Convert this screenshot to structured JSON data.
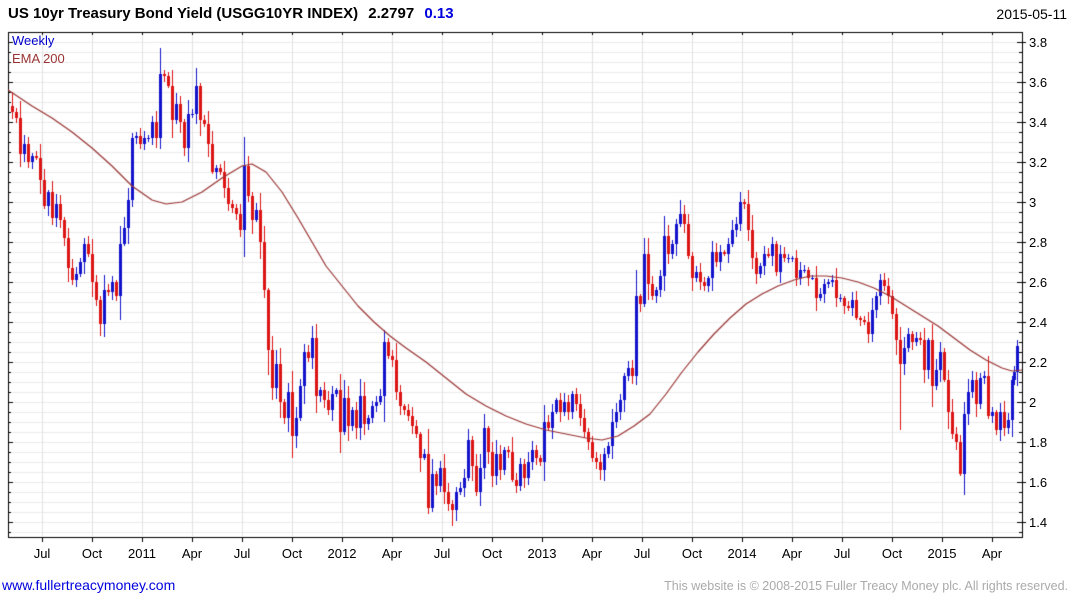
{
  "header": {
    "title": "US 10yr Treasury Bond Yield (USGG10YR INDEX)",
    "last_price": "2.2797",
    "change": "0.13",
    "date": "2015-05-11"
  },
  "legend": {
    "timeframe": "Weekly",
    "overlay": "EMA 200"
  },
  "footer": {
    "site_url": "www.fullertreacymoney.com",
    "copyright": "This website is © 2008-2015 Fuller Treacy Money plc. All rights reserved."
  },
  "colors": {
    "candle_up": "#1313cc",
    "candle_down": "#dc1414",
    "ema_line": "#993333",
    "legend_weekly": "#0000cc",
    "change_text": "#0000dd",
    "link": "#0000dd",
    "copyright_text": "#aaaaaa",
    "grid_h": "#ececec",
    "grid_v": "#e2e2e2",
    "axis": "#000000"
  },
  "chart_data": {
    "type": "candlestick",
    "title": "US 10yr Treasury Bond Yield (USGG10YR INDEX)",
    "subtitle_last": 2.2797,
    "change": 0.13,
    "as_of_date": "2015-05-11",
    "timeframe": "Weekly",
    "overlay": "EMA 200",
    "grid": true,
    "legend_position": "top-left-inside",
    "ylim": [
      1.325,
      3.85
    ],
    "y_major_ticks": [
      "3.8",
      "3.6",
      "3.4",
      "3.2",
      "3",
      "2.8",
      "2.6",
      "2.4",
      "2.2",
      "2",
      "1.8",
      "1.6",
      "1.4"
    ],
    "y_minor_step": 0.05,
    "x_range_decimal_years": [
      2010.33,
      2015.4
    ],
    "x_ticks": [
      {
        "t": 2010.5,
        "label": "Jul"
      },
      {
        "t": 2010.75,
        "label": "Oct"
      },
      {
        "t": 2011.0,
        "label": "2011"
      },
      {
        "t": 2011.25,
        "label": "Apr"
      },
      {
        "t": 2011.5,
        "label": "Jul"
      },
      {
        "t": 2011.75,
        "label": "Oct"
      },
      {
        "t": 2012.0,
        "label": "2012"
      },
      {
        "t": 2012.25,
        "label": "Apr"
      },
      {
        "t": 2012.5,
        "label": "Jul"
      },
      {
        "t": 2012.75,
        "label": "Oct"
      },
      {
        "t": 2013.0,
        "label": "2013"
      },
      {
        "t": 2013.25,
        "label": "Apr"
      },
      {
        "t": 2013.5,
        "label": "Jul"
      },
      {
        "t": 2013.75,
        "label": "Oct"
      },
      {
        "t": 2014.0,
        "label": "2014"
      },
      {
        "t": 2014.25,
        "label": "Apr"
      },
      {
        "t": 2014.5,
        "label": "Jul"
      },
      {
        "t": 2014.75,
        "label": "Oct"
      },
      {
        "t": 2015.0,
        "label": "2015"
      },
      {
        "t": 2015.25,
        "label": "Apr"
      }
    ],
    "weekly_closes": [
      [
        2010.35,
        3.45
      ],
      [
        2010.37,
        3.42
      ],
      [
        2010.39,
        3.24
      ],
      [
        2010.41,
        3.29
      ],
      [
        2010.43,
        3.2
      ],
      [
        2010.45,
        3.23
      ],
      [
        2010.47,
        3.22
      ],
      [
        2010.49,
        3.11
      ],
      [
        2010.51,
        2.98
      ],
      [
        2010.53,
        3.05
      ],
      [
        2010.55,
        2.92
      ],
      [
        2010.57,
        2.99
      ],
      [
        2010.59,
        2.91
      ],
      [
        2010.61,
        2.82
      ],
      [
        2010.63,
        2.67
      ],
      [
        2010.65,
        2.61
      ],
      [
        2010.67,
        2.64
      ],
      [
        2010.69,
        2.7
      ],
      [
        2010.71,
        2.79
      ],
      [
        2010.73,
        2.74
      ],
      [
        2010.75,
        2.6
      ],
      [
        2010.77,
        2.51
      ],
      [
        2010.79,
        2.39
      ],
      [
        2010.81,
        2.56
      ],
      [
        2010.83,
        2.55
      ],
      [
        2010.85,
        2.6
      ],
      [
        2010.87,
        2.53
      ],
      [
        2010.89,
        2.79
      ],
      [
        2010.91,
        2.87
      ],
      [
        2010.93,
        3.01
      ],
      [
        2010.95,
        3.32
      ],
      [
        2010.97,
        3.33
      ],
      [
        2010.99,
        3.29
      ],
      [
        2011.01,
        3.32
      ],
      [
        2011.03,
        3.32
      ],
      [
        2011.05,
        3.4
      ],
      [
        2011.07,
        3.32
      ],
      [
        2011.09,
        3.64
      ],
      [
        2011.11,
        3.63
      ],
      [
        2011.13,
        3.58
      ],
      [
        2011.15,
        3.41
      ],
      [
        2011.17,
        3.49
      ],
      [
        2011.19,
        3.4
      ],
      [
        2011.21,
        3.27
      ],
      [
        2011.23,
        3.44
      ],
      [
        2011.25,
        3.44
      ],
      [
        2011.27,
        3.58
      ],
      [
        2011.29,
        3.41
      ],
      [
        2011.31,
        3.39
      ],
      [
        2011.33,
        3.29
      ],
      [
        2011.35,
        3.15
      ],
      [
        2011.37,
        3.17
      ],
      [
        2011.39,
        3.15
      ],
      [
        2011.41,
        3.07
      ],
      [
        2011.43,
        2.99
      ],
      [
        2011.45,
        2.97
      ],
      [
        2011.47,
        2.94
      ],
      [
        2011.49,
        2.86
      ],
      [
        2011.51,
        3.18
      ],
      [
        2011.53,
        3.03
      ],
      [
        2011.55,
        2.91
      ],
      [
        2011.57,
        2.96
      ],
      [
        2011.59,
        2.8
      ],
      [
        2011.61,
        2.56
      ],
      [
        2011.63,
        2.26
      ],
      [
        2011.65,
        2.07
      ],
      [
        2011.67,
        2.19
      ],
      [
        2011.69,
        2.0
      ],
      [
        2011.71,
        1.92
      ],
      [
        2011.73,
        2.05
      ],
      [
        2011.75,
        1.83
      ],
      [
        2011.77,
        1.92
      ],
      [
        2011.79,
        2.08
      ],
      [
        2011.81,
        2.25
      ],
      [
        2011.83,
        2.22
      ],
      [
        2011.85,
        2.32
      ],
      [
        2011.87,
        2.03
      ],
      [
        2011.89,
        2.06
      ],
      [
        2011.91,
        2.01
      ],
      [
        2011.93,
        1.96
      ],
      [
        2011.95,
        2.04
      ],
      [
        2011.97,
        2.06
      ],
      [
        2011.99,
        1.85
      ],
      [
        2012.01,
        2.02
      ],
      [
        2012.03,
        1.88
      ],
      [
        2012.05,
        1.96
      ],
      [
        2012.07,
        1.87
      ],
      [
        2012.09,
        2.03
      ],
      [
        2012.11,
        1.89
      ],
      [
        2012.13,
        1.92
      ],
      [
        2012.15,
        1.98
      ],
      [
        2012.17,
        2.0
      ],
      [
        2012.19,
        2.03
      ],
      [
        2012.21,
        2.3
      ],
      [
        2012.23,
        2.23
      ],
      [
        2012.25,
        2.21
      ],
      [
        2012.27,
        2.05
      ],
      [
        2012.29,
        1.98
      ],
      [
        2012.31,
        1.96
      ],
      [
        2012.33,
        1.93
      ],
      [
        2012.35,
        1.88
      ],
      [
        2012.37,
        1.84
      ],
      [
        2012.39,
        1.72
      ],
      [
        2012.41,
        1.74
      ],
      [
        2012.43,
        1.47
      ],
      [
        2012.45,
        1.64
      ],
      [
        2012.47,
        1.58
      ],
      [
        2012.49,
        1.67
      ],
      [
        2012.51,
        1.55
      ],
      [
        2012.53,
        1.49
      ],
      [
        2012.55,
        1.46
      ],
      [
        2012.57,
        1.55
      ],
      [
        2012.59,
        1.57
      ],
      [
        2012.61,
        1.62
      ],
      [
        2012.63,
        1.81
      ],
      [
        2012.65,
        1.68
      ],
      [
        2012.67,
        1.55
      ],
      [
        2012.69,
        1.67
      ],
      [
        2012.71,
        1.87
      ],
      [
        2012.73,
        1.75
      ],
      [
        2012.75,
        1.63
      ],
      [
        2012.77,
        1.74
      ],
      [
        2012.79,
        1.66
      ],
      [
        2012.81,
        1.76
      ],
      [
        2012.83,
        1.75
      ],
      [
        2012.85,
        1.61
      ],
      [
        2012.87,
        1.58
      ],
      [
        2012.89,
        1.69
      ],
      [
        2012.91,
        1.62
      ],
      [
        2012.93,
        1.7
      ],
      [
        2012.95,
        1.76
      ],
      [
        2012.97,
        1.72
      ],
      [
        2012.99,
        1.7
      ],
      [
        2013.01,
        1.9
      ],
      [
        2013.03,
        1.87
      ],
      [
        2013.05,
        1.95
      ],
      [
        2013.07,
        2.01
      ],
      [
        2013.09,
        1.95
      ],
      [
        2013.11,
        2.0
      ],
      [
        2013.13,
        1.95
      ],
      [
        2013.15,
        2.04
      ],
      [
        2013.17,
        1.99
      ],
      [
        2013.19,
        1.92
      ],
      [
        2013.21,
        1.85
      ],
      [
        2013.23,
        1.8
      ],
      [
        2013.25,
        1.72
      ],
      [
        2013.27,
        1.7
      ],
      [
        2013.29,
        1.66
      ],
      [
        2013.31,
        1.74
      ],
      [
        2013.33,
        1.78
      ],
      [
        2013.35,
        1.9
      ],
      [
        2013.37,
        1.95
      ],
      [
        2013.39,
        2.01
      ],
      [
        2013.41,
        2.13
      ],
      [
        2013.43,
        2.17
      ],
      [
        2013.45,
        2.13
      ],
      [
        2013.47,
        2.53
      ],
      [
        2013.49,
        2.49
      ],
      [
        2013.51,
        2.74
      ],
      [
        2013.53,
        2.59
      ],
      [
        2013.55,
        2.53
      ],
      [
        2013.57,
        2.56
      ],
      [
        2013.59,
        2.63
      ],
      [
        2013.61,
        2.83
      ],
      [
        2013.63,
        2.74
      ],
      [
        2013.65,
        2.79
      ],
      [
        2013.67,
        2.89
      ],
      [
        2013.69,
        2.94
      ],
      [
        2013.71,
        2.89
      ],
      [
        2013.73,
        2.73
      ],
      [
        2013.75,
        2.62
      ],
      [
        2013.77,
        2.65
      ],
      [
        2013.79,
        2.6
      ],
      [
        2013.81,
        2.58
      ],
      [
        2013.83,
        2.62
      ],
      [
        2013.85,
        2.75
      ],
      [
        2013.87,
        2.7
      ],
      [
        2013.89,
        2.75
      ],
      [
        2013.91,
        2.74
      ],
      [
        2013.93,
        2.79
      ],
      [
        2013.95,
        2.86
      ],
      [
        2013.97,
        2.89
      ],
      [
        2013.99,
        3.0
      ],
      [
        2014.01,
        2.99
      ],
      [
        2014.03,
        2.86
      ],
      [
        2014.05,
        2.72
      ],
      [
        2014.07,
        2.64
      ],
      [
        2014.09,
        2.68
      ],
      [
        2014.11,
        2.74
      ],
      [
        2014.13,
        2.73
      ],
      [
        2014.15,
        2.79
      ],
      [
        2014.17,
        2.65
      ],
      [
        2014.19,
        2.74
      ],
      [
        2014.21,
        2.72
      ],
      [
        2014.23,
        2.72
      ],
      [
        2014.25,
        2.72
      ],
      [
        2014.27,
        2.62
      ],
      [
        2014.29,
        2.66
      ],
      [
        2014.31,
        2.66
      ],
      [
        2014.33,
        2.62
      ],
      [
        2014.35,
        2.62
      ],
      [
        2014.37,
        2.52
      ],
      [
        2014.39,
        2.54
      ],
      [
        2014.41,
        2.59
      ],
      [
        2014.43,
        2.6
      ],
      [
        2014.45,
        2.61
      ],
      [
        2014.47,
        2.52
      ],
      [
        2014.49,
        2.52
      ],
      [
        2014.51,
        2.48
      ],
      [
        2014.53,
        2.47
      ],
      [
        2014.55,
        2.51
      ],
      [
        2014.57,
        2.42
      ],
      [
        2014.59,
        2.41
      ],
      [
        2014.61,
        2.4
      ],
      [
        2014.63,
        2.34
      ],
      [
        2014.65,
        2.46
      ],
      [
        2014.67,
        2.53
      ],
      [
        2014.69,
        2.61
      ],
      [
        2014.71,
        2.58
      ],
      [
        2014.73,
        2.53
      ],
      [
        2014.75,
        2.44
      ],
      [
        2014.77,
        2.31
      ],
      [
        2014.79,
        2.19
      ],
      [
        2014.81,
        2.27
      ],
      [
        2014.83,
        2.34
      ],
      [
        2014.85,
        2.3
      ],
      [
        2014.87,
        2.32
      ],
      [
        2014.89,
        2.31
      ],
      [
        2014.91,
        2.16
      ],
      [
        2014.93,
        2.31
      ],
      [
        2014.95,
        2.08
      ],
      [
        2014.97,
        2.16
      ],
      [
        2014.99,
        2.25
      ],
      [
        2015.01,
        2.11
      ],
      [
        2015.03,
        1.95
      ],
      [
        2015.05,
        1.84
      ],
      [
        2015.07,
        1.8
      ],
      [
        2015.09,
        1.64
      ],
      [
        2015.11,
        1.94
      ],
      [
        2015.13,
        2.05
      ],
      [
        2015.15,
        2.11
      ],
      [
        2015.17,
        1.99
      ],
      [
        2015.19,
        2.12
      ],
      [
        2015.21,
        2.13
      ],
      [
        2015.23,
        1.93
      ],
      [
        2015.25,
        1.95
      ],
      [
        2015.27,
        1.86
      ],
      [
        2015.29,
        1.95
      ],
      [
        2015.31,
        1.87
      ],
      [
        2015.33,
        1.91
      ],
      [
        2015.35,
        2.11
      ],
      [
        2015.36,
        2.15
      ],
      [
        2015.375,
        2.28
      ]
    ],
    "wick_overrides": [
      [
        2010.35,
        "h",
        3.55
      ],
      [
        2011.09,
        "h",
        3.77
      ],
      [
        2011.27,
        "h",
        3.67
      ],
      [
        2011.75,
        "l",
        1.72
      ],
      [
        2012.21,
        "h",
        2.36
      ],
      [
        2012.43,
        "l",
        1.44
      ],
      [
        2012.55,
        "l",
        1.38
      ],
      [
        2013.29,
        "l",
        1.61
      ],
      [
        2013.69,
        "h",
        3.01
      ],
      [
        2013.99,
        "h",
        3.05
      ],
      [
        2014.79,
        "l",
        1.86
      ],
      [
        2015.09,
        "l",
        1.63
      ],
      [
        2015.375,
        "h",
        2.31
      ]
    ],
    "ema200": [
      [
        2010.33,
        3.56
      ],
      [
        2010.45,
        3.48
      ],
      [
        2010.55,
        3.42
      ],
      [
        2010.65,
        3.35
      ],
      [
        2010.75,
        3.27
      ],
      [
        2010.85,
        3.18
      ],
      [
        2010.95,
        3.08
      ],
      [
        2011.05,
        3.01
      ],
      [
        2011.12,
        2.99
      ],
      [
        2011.2,
        3.0
      ],
      [
        2011.3,
        3.05
      ],
      [
        2011.4,
        3.12
      ],
      [
        2011.5,
        3.18
      ],
      [
        2011.55,
        3.19
      ],
      [
        2011.62,
        3.15
      ],
      [
        2011.7,
        3.05
      ],
      [
        2011.78,
        2.92
      ],
      [
        2011.85,
        2.8
      ],
      [
        2011.92,
        2.68
      ],
      [
        2012.0,
        2.58
      ],
      [
        2012.08,
        2.48
      ],
      [
        2012.16,
        2.4
      ],
      [
        2012.24,
        2.33
      ],
      [
        2012.32,
        2.27
      ],
      [
        2012.42,
        2.2
      ],
      [
        2012.52,
        2.12
      ],
      [
        2012.62,
        2.04
      ],
      [
        2012.72,
        1.98
      ],
      [
        2012.82,
        1.93
      ],
      [
        2012.92,
        1.89
      ],
      [
        2013.02,
        1.86
      ],
      [
        2013.12,
        1.84
      ],
      [
        2013.22,
        1.82
      ],
      [
        2013.3,
        1.81
      ],
      [
        2013.38,
        1.83
      ],
      [
        2013.46,
        1.88
      ],
      [
        2013.54,
        1.94
      ],
      [
        2013.62,
        2.04
      ],
      [
        2013.7,
        2.15
      ],
      [
        2013.78,
        2.25
      ],
      [
        2013.86,
        2.34
      ],
      [
        2013.94,
        2.42
      ],
      [
        2014.02,
        2.49
      ],
      [
        2014.1,
        2.54
      ],
      [
        2014.18,
        2.58
      ],
      [
        2014.26,
        2.61
      ],
      [
        2014.34,
        2.63
      ],
      [
        2014.42,
        2.63
      ],
      [
        2014.5,
        2.62
      ],
      [
        2014.58,
        2.6
      ],
      [
        2014.66,
        2.57
      ],
      [
        2014.74,
        2.53
      ],
      [
        2014.82,
        2.48
      ],
      [
        2014.9,
        2.43
      ],
      [
        2014.98,
        2.38
      ],
      [
        2015.06,
        2.32
      ],
      [
        2015.14,
        2.26
      ],
      [
        2015.22,
        2.21
      ],
      [
        2015.3,
        2.17
      ],
      [
        2015.35,
        2.155
      ],
      [
        2015.4,
        2.16
      ]
    ]
  }
}
